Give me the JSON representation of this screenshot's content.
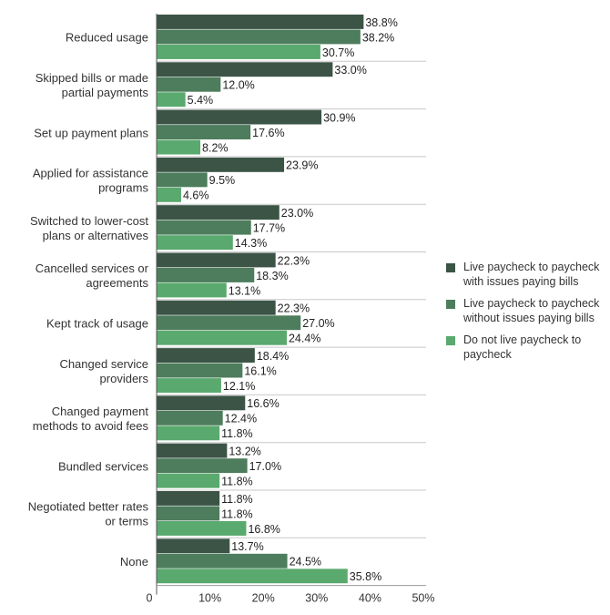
{
  "chart_data": {
    "type": "bar",
    "orientation": "horizontal",
    "categories": [
      [
        "Reduced usage"
      ],
      [
        "Skipped bills or made",
        "partial payments"
      ],
      [
        "Set up payment plans"
      ],
      [
        "Applied for assistance",
        "programs"
      ],
      [
        "Switched to lower-cost",
        "plans or alternatives"
      ],
      [
        "Cancelled services or",
        "agreements"
      ],
      [
        "Kept track of usage"
      ],
      [
        "Changed service",
        "providers"
      ],
      [
        "Changed payment",
        "methods to avoid fees"
      ],
      [
        "Bundled services"
      ],
      [
        "Negotiated better rates",
        "or terms"
      ],
      [
        "None"
      ]
    ],
    "series": [
      {
        "name": "Live paycheck to paycheck with issues paying bills",
        "legend_lines": [
          "Live paycheck to paycheck",
          "with issues paying bills"
        ],
        "color": "#3b5446",
        "values": [
          38.8,
          33.0,
          30.9,
          23.9,
          23.0,
          22.3,
          22.3,
          18.4,
          16.6,
          13.2,
          11.8,
          13.7
        ]
      },
      {
        "name": "Live paycheck to paycheck without issues paying bills",
        "legend_lines": [
          "Live paycheck to paycheck",
          "without issues paying bills"
        ],
        "color": "#4d7d5c",
        "values": [
          38.2,
          12.0,
          17.6,
          9.5,
          17.7,
          18.3,
          27.0,
          16.1,
          12.4,
          17.0,
          11.8,
          24.5
        ]
      },
      {
        "name": "Do not live paycheck to paycheck",
        "legend_lines": [
          "Do not live paycheck to",
          "paycheck"
        ],
        "color": "#5aa96e",
        "values": [
          30.7,
          5.4,
          8.2,
          4.6,
          14.3,
          13.1,
          24.4,
          12.1,
          11.8,
          11.8,
          16.8,
          35.8
        ]
      }
    ],
    "xlim": [
      0,
      50
    ],
    "xticks": [
      0,
      10,
      20,
      30,
      40,
      50
    ],
    "xtick_labels": [
      "0",
      "10%",
      "20%",
      "30%",
      "40%",
      "50%"
    ],
    "value_suffix": "%",
    "legend_position": "right",
    "title": "",
    "xlabel": "",
    "ylabel": ""
  }
}
